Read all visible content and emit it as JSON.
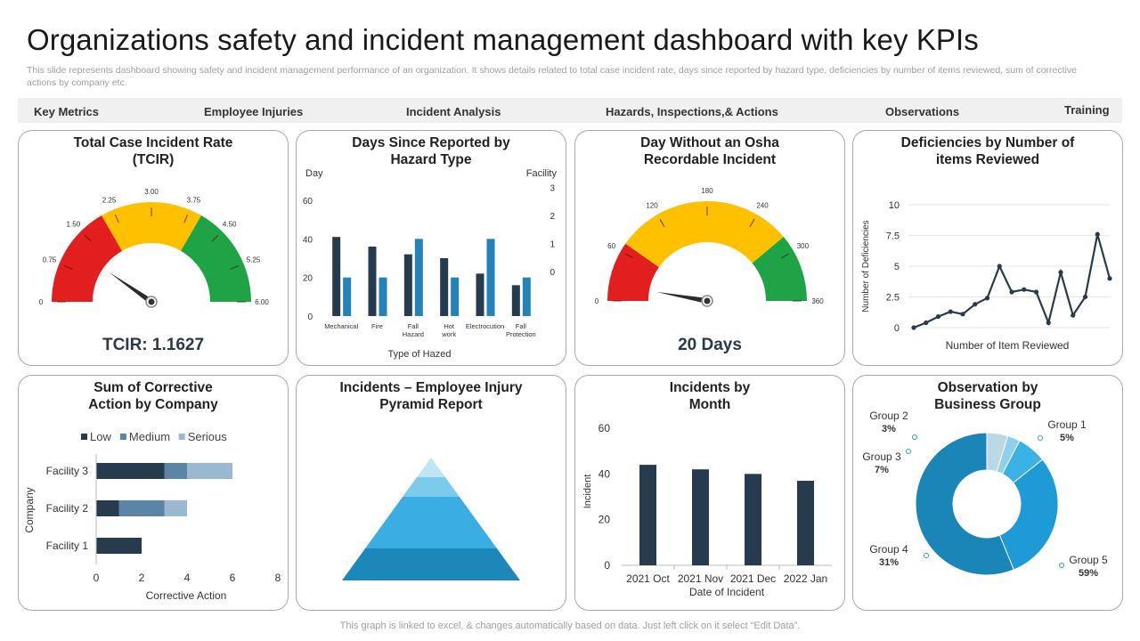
{
  "page": {
    "title": "Organizations safety and incident management dashboard with key KPIs",
    "subtitle": "This slide represents dashboard showing safety and incident management performance of an organization. It shows details related to total case incident rate, days since reported by hazard type, deficiencies by number of items reviewed, sum of corrective actions by company etc.",
    "footer": "This graph is linked to excel, & changes automatically based on data. Just left click on it select “Edit Data”."
  },
  "tabs": [
    "Key Metrics",
    "Employee Injuries",
    "Incident Analysis",
    "Hazards, Inspections,& Actions",
    "Observations",
    "Training"
  ],
  "colors": {
    "dark": "#263c4e",
    "blue": "#2382b8",
    "red": "#e31e1e",
    "yellow": "#ffc000",
    "green": "#1ea446"
  },
  "chart_data": [
    {
      "id": "tcir",
      "type": "gauge",
      "title": "Total Case Incident Rate (TCIR)",
      "ticks": [
        "0",
        "0.75",
        "1.50",
        "2.25",
        "3.00",
        "3.75",
        "4.50",
        "5.25",
        "6.00"
      ],
      "min": 0,
      "max": 6,
      "bands": [
        {
          "from": 0,
          "to": 2,
          "color": "#e31e1e"
        },
        {
          "from": 2,
          "to": 4,
          "color": "#ffc000"
        },
        {
          "from": 4,
          "to": 6,
          "color": "#1ea446"
        }
      ],
      "value": 1.1627,
      "value_label": "TCIR: 1.1627"
    },
    {
      "id": "hazard",
      "type": "bar",
      "title": "Days Since Reported by Hazard Type",
      "left_axis_title": "Day",
      "right_axis_title": "Facility",
      "xlabel": "Type of Hazed",
      "categories": [
        "Mechanical",
        "Fire",
        "Fall Hazard",
        "Hot work",
        "Electrocution",
        "Fall Protection"
      ],
      "left_ticks": [
        "0",
        "20",
        "40",
        "60"
      ],
      "right_ticks": [
        "0",
        "1",
        "2",
        "3"
      ],
      "ylim": [
        0,
        60
      ],
      "series": [
        {
          "values": [
            41,
            36,
            32,
            30,
            22,
            16
          ],
          "color": "#263c4e"
        },
        {
          "values": [
            20,
            20,
            40,
            20,
            40,
            20
          ],
          "color": "#2382b8"
        }
      ]
    },
    {
      "id": "osha",
      "type": "gauge",
      "title": "Day Without an Osha Recordable Incident",
      "ticks": [
        "0",
        "60",
        "120",
        "180",
        "240",
        "300",
        "360"
      ],
      "min": 0,
      "max": 360,
      "bands": [
        {
          "from": 0,
          "to": 70,
          "color": "#e31e1e"
        },
        {
          "from": 70,
          "to": 280,
          "color": "#ffc000"
        },
        {
          "from": 280,
          "to": 360,
          "color": "#1ea446"
        }
      ],
      "value": 20,
      "value_label": "20 Days"
    },
    {
      "id": "deficiencies",
      "type": "line",
      "title": "Deficiencies by Number of items Reviewed",
      "ylabel": "Number of Deficiencies",
      "xlabel": "Number of Item Reviewed",
      "y_ticks": [
        "0",
        "2.5",
        "5",
        "7.5",
        "10"
      ],
      "ylim": [
        0,
        10
      ],
      "values": [
        0,
        0.4,
        0.9,
        1.3,
        1.1,
        1.9,
        2.4,
        5.0,
        2.9,
        3.1,
        2.9,
        0.4,
        4.5,
        1.0,
        2.5,
        7.6,
        4.0
      ],
      "color": "#263c4e"
    },
    {
      "id": "corrective",
      "type": "bar",
      "orientation": "horizontal",
      "stacked": true,
      "title": "Sum of Corrective Action by Company",
      "ylabel": "Company",
      "xlabel": "Corrective Action",
      "categories": [
        "Facility 1",
        "Facility 2",
        "Facility 3"
      ],
      "x_ticks": [
        "0",
        "2",
        "4",
        "6",
        "8"
      ],
      "xlim": [
        0,
        8
      ],
      "series": [
        {
          "name": "Low",
          "values": [
            2,
            1,
            3
          ],
          "color": "#263c4e"
        },
        {
          "name": "Medium",
          "values": [
            0,
            2,
            1
          ],
          "color": "#5b85a6"
        },
        {
          "name": "Serious",
          "values": [
            0,
            1,
            2
          ],
          "color": "#9ab8cf"
        }
      ]
    },
    {
      "id": "pyramid",
      "type": "pyramid",
      "title": "Incidents – Employee Injury Pyramid Report",
      "levels": [
        {
          "color": "#bfe6f5"
        },
        {
          "color": "#7ccbec"
        },
        {
          "color": "#3aaee2"
        },
        {
          "color": "#1c88ba"
        }
      ]
    },
    {
      "id": "monthly",
      "type": "bar",
      "title": "Incidents by Month",
      "ylabel": "Incident",
      "xlabel": "Date of Incident",
      "categories": [
        "2021 Oct",
        "2021 Nov",
        "2021 Dec",
        "2022 Jan"
      ],
      "y_ticks": [
        "0",
        "20",
        "40",
        "60"
      ],
      "ylim": [
        0,
        60
      ],
      "values": [
        44,
        42,
        40,
        37
      ],
      "color": "#263c4e"
    },
    {
      "id": "observation",
      "type": "pie",
      "donut": true,
      "title": "Observation by Business Group",
      "slices": [
        {
          "name": "Group 1",
          "value": 5,
          "label": "5%",
          "color": "#bcd7e6"
        },
        {
          "name": "Group 2",
          "value": 3,
          "label": "3%",
          "color": "#8fd0ee"
        },
        {
          "name": "Group 3",
          "value": 7,
          "label": "7%",
          "color": "#3ab2e6"
        },
        {
          "name": "Group 4",
          "value": 31,
          "label": "31%",
          "color": "#1e9ad6"
        },
        {
          "name": "Group 5",
          "value": 59,
          "label": "59%",
          "color": "#1a86b8"
        }
      ]
    }
  ]
}
